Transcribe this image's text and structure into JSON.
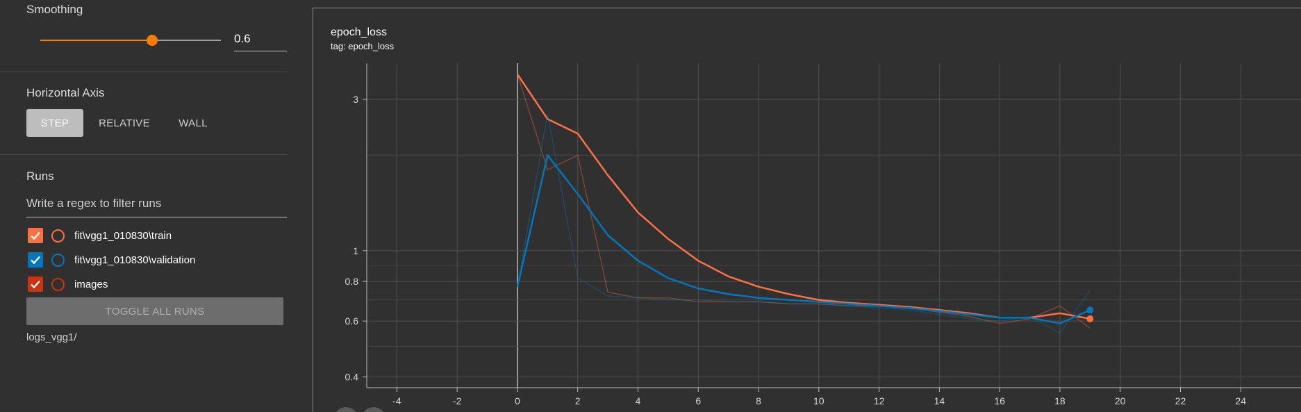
{
  "sidebar": {
    "smoothing": {
      "title": "Smoothing",
      "value": "0.6",
      "fraction": 0.6
    },
    "horizontal_axis": {
      "title": "Horizontal Axis",
      "options": [
        "STEP",
        "RELATIVE",
        "WALL"
      ],
      "selected": "STEP"
    },
    "runs": {
      "title": "Runs",
      "filter_placeholder": "Write a regex to filter runs",
      "items": [
        {
          "label": "fit\\vgg1_010830\\train",
          "color": "#ff7043",
          "checked": true
        },
        {
          "label": "fit\\vgg1_010830\\validation",
          "color": "#0077bb",
          "checked": true
        },
        {
          "label": "images",
          "color": "#cc3311",
          "checked": true
        }
      ],
      "toggle_label": "TOGGLE ALL RUNS",
      "logdir": "logs_vgg1/"
    }
  },
  "card": {
    "title": "epoch_loss",
    "tag": "tag: epoch_loss"
  },
  "chart_data": {
    "type": "line",
    "xlim": [
      -5,
      26
    ],
    "ylim": [
      0.37,
      3.9
    ],
    "y_scale": "log",
    "x_ticks": [
      -4,
      -2,
      0,
      2,
      4,
      6,
      8,
      10,
      12,
      14,
      16,
      18,
      20,
      22,
      24
    ],
    "y_ticks": [
      0.4,
      0.6,
      0.8,
      1,
      3
    ],
    "grid": true,
    "series": [
      {
        "name": "fit\\vgg1_010830\\train",
        "color": "#ff7043",
        "x": [
          0,
          1,
          2,
          3,
          4,
          5,
          6,
          7,
          8,
          9,
          10,
          11,
          12,
          13,
          14,
          15,
          16,
          17,
          18,
          19
        ],
        "raw": [
          3.6,
          1.8,
          2.0,
          0.74,
          0.71,
          0.71,
          0.69,
          0.69,
          0.69,
          0.68,
          0.68,
          0.67,
          0.67,
          0.66,
          0.64,
          0.62,
          0.59,
          0.61,
          0.67,
          0.57
        ],
        "smoothed": [
          3.6,
          2.6,
          2.34,
          1.73,
          1.32,
          1.09,
          0.93,
          0.83,
          0.77,
          0.73,
          0.7,
          0.685,
          0.675,
          0.665,
          0.65,
          0.635,
          0.615,
          0.615,
          0.635,
          0.61
        ]
      },
      {
        "name": "fit\\vgg1_010830\\validation",
        "color": "#0077bb",
        "x": [
          0,
          1,
          2,
          3,
          4,
          5,
          6,
          7,
          8,
          9,
          10,
          11,
          12,
          13,
          14,
          15,
          16,
          17,
          18,
          19
        ],
        "raw": [
          0.77,
          2.7,
          0.82,
          0.72,
          0.71,
          0.7,
          0.7,
          0.69,
          0.69,
          0.68,
          0.68,
          0.67,
          0.66,
          0.65,
          0.63,
          0.61,
          0.6,
          0.62,
          0.55,
          0.75
        ],
        "smoothed": [
          0.77,
          2.0,
          1.51,
          1.12,
          0.93,
          0.82,
          0.76,
          0.73,
          0.71,
          0.7,
          0.69,
          0.68,
          0.67,
          0.66,
          0.645,
          0.63,
          0.615,
          0.615,
          0.59,
          0.65
        ]
      }
    ]
  }
}
